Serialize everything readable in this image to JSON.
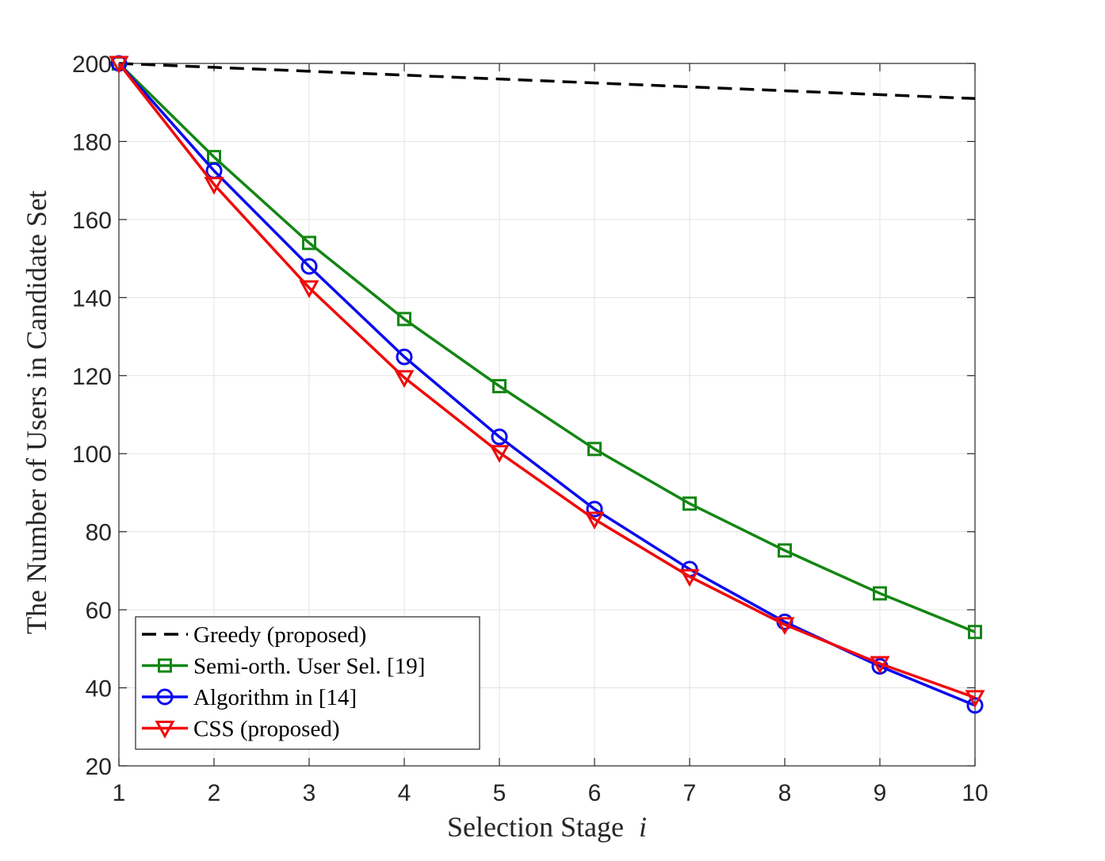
{
  "chart_data": {
    "type": "line",
    "title": "",
    "xlabel": "Selection Stage",
    "xlabel_var": "i",
    "ylabel": "The Number of Users in Candidate Set",
    "xlim": [
      1,
      10
    ],
    "ylim": [
      20,
      200
    ],
    "xticks": [
      1,
      2,
      3,
      4,
      5,
      6,
      7,
      8,
      9,
      10
    ],
    "yticks": [
      20,
      40,
      60,
      80,
      100,
      120,
      140,
      160,
      180,
      200
    ],
    "grid": true,
    "legend_position": "bottom-left",
    "x": [
      1,
      2,
      3,
      4,
      5,
      6,
      7,
      8,
      9,
      10
    ],
    "series": [
      {
        "name": "Greedy (proposed)",
        "color": "#000000",
        "dash": "dashed",
        "marker": "none",
        "values": [
          200,
          199,
          198,
          197,
          196,
          195,
          194,
          193,
          192,
          191
        ]
      },
      {
        "name": "Semi-orth. User Sel. [19]",
        "color": "#138613",
        "dash": "solid",
        "marker": "square",
        "values": [
          200,
          176,
          154,
          134.5,
          117.3,
          101.2,
          87.2,
          75.2,
          64.2,
          54.3
        ]
      },
      {
        "name": "Algorithm in [14]",
        "color": "#0a0af0",
        "dash": "solid",
        "marker": "circle",
        "values": [
          200,
          172.5,
          148,
          124.8,
          104.3,
          85.8,
          70.4,
          56.9,
          45.5,
          35.5
        ]
      },
      {
        "name": "CSS (proposed)",
        "color": "#f00a0a",
        "dash": "solid",
        "marker": "triangle-down",
        "values": [
          200,
          169,
          142.5,
          119.5,
          100.3,
          83.2,
          68.5,
          56.2,
          46.2,
          37.5
        ]
      }
    ]
  }
}
